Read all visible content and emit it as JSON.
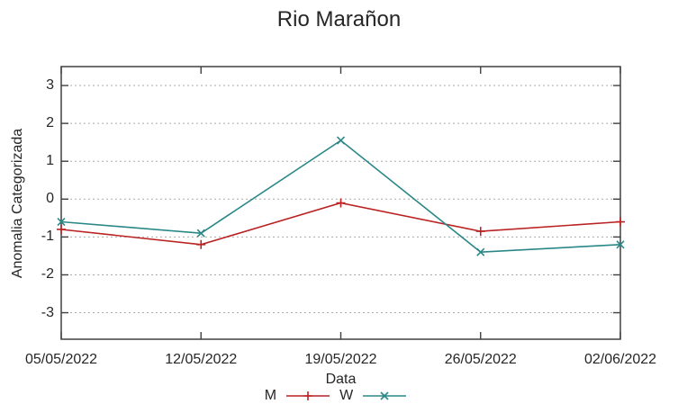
{
  "chart_data": {
    "type": "line",
    "title": "Rio Marañon",
    "xlabel": "Data",
    "ylabel": "Anomalia Categorizada",
    "categories": [
      "05/05/2022",
      "12/05/2022",
      "19/05/2022",
      "26/05/2022",
      "02/06/2022"
    ],
    "yticks": [
      3,
      2,
      1,
      0,
      -1,
      -2,
      -3
    ],
    "ylim": [
      -3.7,
      3.5
    ],
    "grid": "horizontal-dotted",
    "legend_position": "bottom-center",
    "series": [
      {
        "name": "M",
        "color": "#bb2222",
        "marker": "plus",
        "values": [
          -0.8,
          -1.2,
          -0.1,
          -0.85,
          -0.6
        ]
      },
      {
        "name": "W",
        "color": "#2a8787",
        "marker": "cross",
        "values": [
          -0.6,
          -0.9,
          1.55,
          -1.4,
          -1.2
        ]
      }
    ],
    "colors": {
      "background": "#ffffff",
      "border": "#404040",
      "grid": "#a9a9a9",
      "text": "#262626"
    }
  }
}
